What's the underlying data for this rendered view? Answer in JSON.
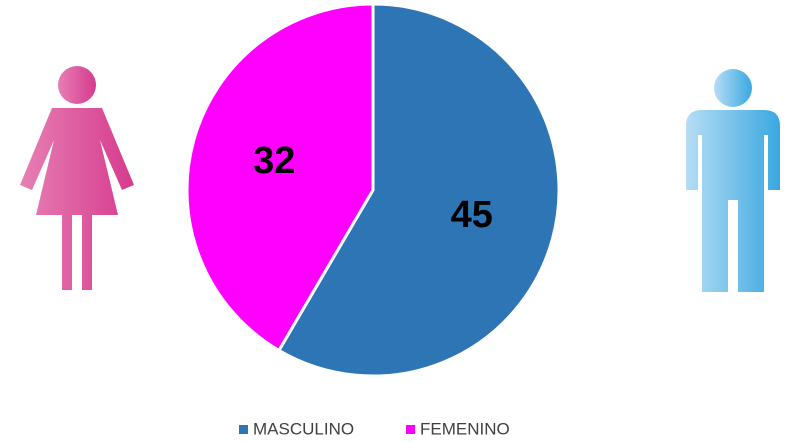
{
  "chart_data": {
    "type": "pie",
    "categories": [
      "MASCULINO",
      "FEMENINO"
    ],
    "values": [
      45,
      32
    ],
    "colors": [
      "#2E75B6",
      "#FF00FF"
    ],
    "legend": "bottom"
  }
}
